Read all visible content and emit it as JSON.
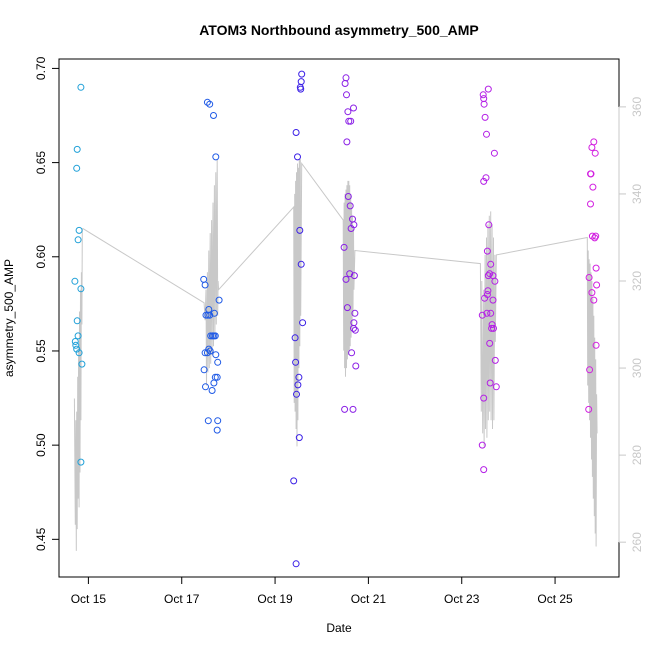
{
  "chart_data": {
    "type": "scatter",
    "title": "ATOM3 Northbound asymmetry_500_AMP",
    "xlabel": "Date",
    "ylabel": "asymmetry_500_AMP",
    "x_ticks": [
      {
        "day": 15,
        "label": "Oct 15"
      },
      {
        "day": 17,
        "label": "Oct 17"
      },
      {
        "day": 19,
        "label": "Oct 19"
      },
      {
        "day": 21,
        "label": "Oct 21"
      },
      {
        "day": 23,
        "label": "Oct 23"
      },
      {
        "day": 25,
        "label": "Oct 25"
      }
    ],
    "xlim": [
      14.37,
      26.37
    ],
    "ylim": [
      0.43,
      0.705
    ],
    "y_ticks": [
      0.45,
      0.5,
      0.55,
      0.6,
      0.65,
      0.7
    ],
    "y_tick_labels": [
      "0.45",
      "0.50",
      "0.55",
      "0.60",
      "0.65",
      "0.70"
    ],
    "y2lim": [
      252,
      371
    ],
    "y2_ticks": [
      260,
      280,
      300,
      320,
      340,
      360
    ],
    "y2_tick_labels": [
      "260",
      "280",
      "300",
      "320",
      "340",
      "360"
    ],
    "grid": false,
    "legend": "none",
    "colors": {
      "axis": "#000000",
      "right_axis": "#c8c8c8",
      "line": "#c8c8c8",
      "cluster_1": "#1fa0d8",
      "cluster_2": "#1f5ae6",
      "cluster_3": "#3a1fe6",
      "cluster_4": "#8a1fe6",
      "cluster_5": "#b41fe6",
      "cluster_6": "#d21fe0"
    },
    "point_series": [
      {
        "color_key": "cluster_1",
        "points": [
          [
            14.84,
            0.69
          ],
          [
            14.76,
            0.657
          ],
          [
            14.75,
            0.647
          ],
          [
            14.8,
            0.614
          ],
          [
            14.78,
            0.609
          ],
          [
            14.71,
            0.587
          ],
          [
            14.84,
            0.583
          ],
          [
            14.76,
            0.566
          ],
          [
            14.78,
            0.558
          ],
          [
            14.72,
            0.555
          ],
          [
            14.73,
            0.553
          ],
          [
            14.75,
            0.551
          ],
          [
            14.8,
            0.549
          ],
          [
            14.86,
            0.543
          ],
          [
            14.84,
            0.491
          ]
        ]
      },
      {
        "color_key": "cluster_2",
        "points": [
          [
            17.55,
            0.682
          ],
          [
            17.6,
            0.681
          ],
          [
            17.68,
            0.675
          ],
          [
            17.73,
            0.653
          ],
          [
            17.47,
            0.588
          ],
          [
            17.5,
            0.585
          ],
          [
            17.8,
            0.577
          ],
          [
            17.58,
            0.572
          ],
          [
            17.7,
            0.57
          ],
          [
            17.52,
            0.569
          ],
          [
            17.56,
            0.569
          ],
          [
            17.6,
            0.569
          ],
          [
            17.62,
            0.558
          ],
          [
            17.66,
            0.558
          ],
          [
            17.69,
            0.558
          ],
          [
            17.72,
            0.558
          ],
          [
            17.58,
            0.551
          ],
          [
            17.61,
            0.55
          ],
          [
            17.5,
            0.549
          ],
          [
            17.55,
            0.549
          ],
          [
            17.73,
            0.548
          ],
          [
            17.77,
            0.544
          ],
          [
            17.48,
            0.54
          ],
          [
            17.72,
            0.536
          ],
          [
            17.76,
            0.536
          ],
          [
            17.69,
            0.533
          ],
          [
            17.51,
            0.531
          ],
          [
            17.65,
            0.529
          ],
          [
            17.57,
            0.513
          ],
          [
            17.77,
            0.513
          ],
          [
            17.76,
            0.508
          ]
        ]
      },
      {
        "color_key": "cluster_3",
        "points": [
          [
            19.57,
            0.697
          ],
          [
            19.56,
            0.693
          ],
          [
            19.54,
            0.69
          ],
          [
            19.55,
            0.689
          ],
          [
            19.45,
            0.666
          ],
          [
            19.48,
            0.653
          ],
          [
            19.53,
            0.614
          ],
          [
            19.56,
            0.596
          ],
          [
            19.59,
            0.565
          ],
          [
            19.43,
            0.557
          ],
          [
            19.44,
            0.544
          ],
          [
            19.51,
            0.536
          ],
          [
            19.49,
            0.532
          ],
          [
            19.46,
            0.527
          ],
          [
            19.52,
            0.504
          ],
          [
            19.4,
            0.481
          ],
          [
            19.45,
            0.437
          ]
        ]
      },
      {
        "color_key": "cluster_4",
        "points": [
          [
            20.52,
            0.695
          ],
          [
            20.5,
            0.692
          ],
          [
            20.53,
            0.686
          ],
          [
            20.68,
            0.679
          ],
          [
            20.56,
            0.677
          ],
          [
            20.58,
            0.672
          ],
          [
            20.62,
            0.672
          ],
          [
            20.54,
            0.661
          ],
          [
            20.57,
            0.632
          ],
          [
            20.61,
            0.627
          ],
          [
            20.66,
            0.62
          ],
          [
            20.69,
            0.617
          ],
          [
            20.63,
            0.615
          ],
          [
            20.48,
            0.605
          ],
          [
            20.6,
            0.591
          ],
          [
            20.7,
            0.59
          ],
          [
            20.52,
            0.588
          ],
          [
            20.71,
            0.57
          ],
          [
            20.55,
            0.573
          ],
          [
            20.69,
            0.565
          ],
          [
            20.68,
            0.562
          ],
          [
            20.72,
            0.561
          ],
          [
            20.64,
            0.549
          ],
          [
            20.73,
            0.542
          ],
          [
            20.49,
            0.519
          ],
          [
            20.67,
            0.519
          ]
        ]
      },
      {
        "color_key": "cluster_5",
        "points": [
          [
            23.57,
            0.689
          ],
          [
            23.46,
            0.686
          ],
          [
            23.47,
            0.684
          ],
          [
            23.48,
            0.681
          ],
          [
            23.5,
            0.674
          ],
          [
            23.53,
            0.665
          ],
          [
            23.7,
            0.655
          ],
          [
            23.52,
            0.642
          ],
          [
            23.47,
            0.64
          ],
          [
            23.58,
            0.617
          ],
          [
            23.55,
            0.603
          ],
          [
            23.62,
            0.596
          ],
          [
            23.57,
            0.59
          ],
          [
            23.67,
            0.59
          ],
          [
            23.6,
            0.591
          ],
          [
            23.71,
            0.587
          ],
          [
            23.56,
            0.582
          ],
          [
            23.55,
            0.58
          ],
          [
            23.49,
            0.578
          ],
          [
            23.67,
            0.577
          ],
          [
            23.62,
            0.57
          ],
          [
            23.54,
            0.57
          ],
          [
            23.44,
            0.569
          ],
          [
            23.65,
            0.564
          ],
          [
            23.68,
            0.562
          ],
          [
            23.64,
            0.562
          ],
          [
            23.6,
            0.554
          ],
          [
            23.72,
            0.545
          ],
          [
            23.61,
            0.533
          ],
          [
            23.74,
            0.531
          ],
          [
            23.47,
            0.525
          ],
          [
            23.44,
            0.5
          ],
          [
            23.47,
            0.487
          ]
        ]
      },
      {
        "color_key": "cluster_6",
        "points": [
          [
            25.83,
            0.661
          ],
          [
            25.79,
            0.658
          ],
          [
            25.86,
            0.655
          ],
          [
            25.76,
            0.644
          ],
          [
            25.77,
            0.644
          ],
          [
            25.81,
            0.637
          ],
          [
            25.76,
            0.628
          ],
          [
            25.8,
            0.611
          ],
          [
            25.87,
            0.611
          ],
          [
            25.85,
            0.61
          ],
          [
            25.88,
            0.594
          ],
          [
            25.73,
            0.589
          ],
          [
            25.89,
            0.585
          ],
          [
            25.79,
            0.581
          ],
          [
            25.83,
            0.577
          ],
          [
            25.88,
            0.553
          ],
          [
            25.74,
            0.54
          ],
          [
            25.72,
            0.519
          ]
        ]
      }
    ],
    "line_series": {
      "right_axis": true,
      "points": [
        [
          14.7,
          293
        ],
        [
          14.72,
          264
        ],
        [
          14.73,
          288
        ],
        [
          14.74,
          258
        ],
        [
          14.75,
          290
        ],
        [
          14.76,
          263
        ],
        [
          14.77,
          298
        ],
        [
          14.78,
          270
        ],
        [
          14.79,
          305
        ],
        [
          14.8,
          268
        ],
        [
          14.81,
          313
        ],
        [
          14.82,
          276
        ],
        [
          14.83,
          318
        ],
        [
          14.84,
          288
        ],
        [
          14.85,
          322
        ],
        [
          14.86,
          310
        ],
        [
          14.87,
          332
        ],
        [
          14.89,
          332
        ],
        [
          17.48,
          315
        ],
        [
          17.5,
          311
        ],
        [
          17.52,
          318
        ],
        [
          17.53,
          296
        ],
        [
          17.55,
          322
        ],
        [
          17.56,
          299
        ],
        [
          17.58,
          327
        ],
        [
          17.59,
          300
        ],
        [
          17.61,
          331
        ],
        [
          17.62,
          301
        ],
        [
          17.64,
          334
        ],
        [
          17.65,
          303
        ],
        [
          17.67,
          338
        ],
        [
          17.68,
          305
        ],
        [
          17.7,
          342
        ],
        [
          17.71,
          307
        ],
        [
          17.73,
          345
        ],
        [
          17.74,
          310
        ],
        [
          17.76,
          348
        ],
        [
          17.77,
          312
        ],
        [
          17.78,
          320
        ],
        [
          17.79,
          318
        ],
        [
          19.4,
          337
        ],
        [
          19.41,
          292
        ],
        [
          19.42,
          340
        ],
        [
          19.43,
          290
        ],
        [
          19.44,
          343
        ],
        [
          19.45,
          286
        ],
        [
          19.46,
          345
        ],
        [
          19.47,
          282
        ],
        [
          19.48,
          347
        ],
        [
          19.49,
          288
        ],
        [
          19.5,
          346
        ],
        [
          19.51,
          300
        ],
        [
          19.52,
          348
        ],
        [
          19.53,
          305
        ],
        [
          19.54,
          348
        ],
        [
          19.55,
          312
        ],
        [
          19.57,
          347
        ],
        [
          20.46,
          334
        ],
        [
          20.47,
          304
        ],
        [
          20.48,
          338
        ],
        [
          20.49,
          300
        ],
        [
          20.5,
          340
        ],
        [
          20.51,
          298
        ],
        [
          20.52,
          341
        ],
        [
          20.53,
          300
        ],
        [
          20.54,
          342
        ],
        [
          20.55,
          302
        ],
        [
          20.56,
          343
        ],
        [
          20.57,
          303
        ],
        [
          20.58,
          343
        ],
        [
          20.59,
          304
        ],
        [
          20.6,
          342
        ],
        [
          20.61,
          305
        ],
        [
          20.62,
          340
        ],
        [
          20.63,
          307
        ],
        [
          20.64,
          338
        ],
        [
          20.65,
          309
        ],
        [
          20.66,
          335
        ],
        [
          20.67,
          312
        ],
        [
          20.68,
          332
        ],
        [
          20.69,
          318
        ],
        [
          20.71,
          327
        ],
        [
          23.4,
          324
        ],
        [
          23.42,
          290
        ],
        [
          23.43,
          320
        ],
        [
          23.45,
          285
        ],
        [
          23.47,
          318
        ],
        [
          23.48,
          282
        ],
        [
          23.5,
          326
        ],
        [
          23.51,
          286
        ],
        [
          23.53,
          330
        ],
        [
          23.54,
          284
        ],
        [
          23.56,
          333
        ],
        [
          23.57,
          288
        ],
        [
          23.59,
          335
        ],
        [
          23.6,
          290
        ],
        [
          23.62,
          336
        ],
        [
          23.63,
          288
        ],
        [
          23.65,
          333
        ],
        [
          23.66,
          286
        ],
        [
          23.68,
          330
        ],
        [
          23.69,
          288
        ],
        [
          23.71,
          326
        ],
        [
          23.72,
          306
        ],
        [
          23.74,
          326
        ],
        [
          25.69,
          330
        ],
        [
          25.7,
          296
        ],
        [
          25.71,
          327
        ],
        [
          25.72,
          292
        ],
        [
          25.73,
          325
        ],
        [
          25.74,
          288
        ],
        [
          25.75,
          324
        ],
        [
          25.76,
          284
        ],
        [
          25.77,
          322
        ],
        [
          25.78,
          279
        ],
        [
          25.79,
          320
        ],
        [
          25.8,
          275
        ],
        [
          25.81,
          316
        ],
        [
          25.82,
          270
        ],
        [
          25.83,
          312
        ],
        [
          25.84,
          266
        ],
        [
          25.85,
          307
        ],
        [
          25.86,
          262
        ],
        [
          25.87,
          302
        ],
        [
          25.88,
          259
        ],
        [
          25.89,
          294
        ],
        [
          25.9,
          285
        ]
      ]
    }
  }
}
